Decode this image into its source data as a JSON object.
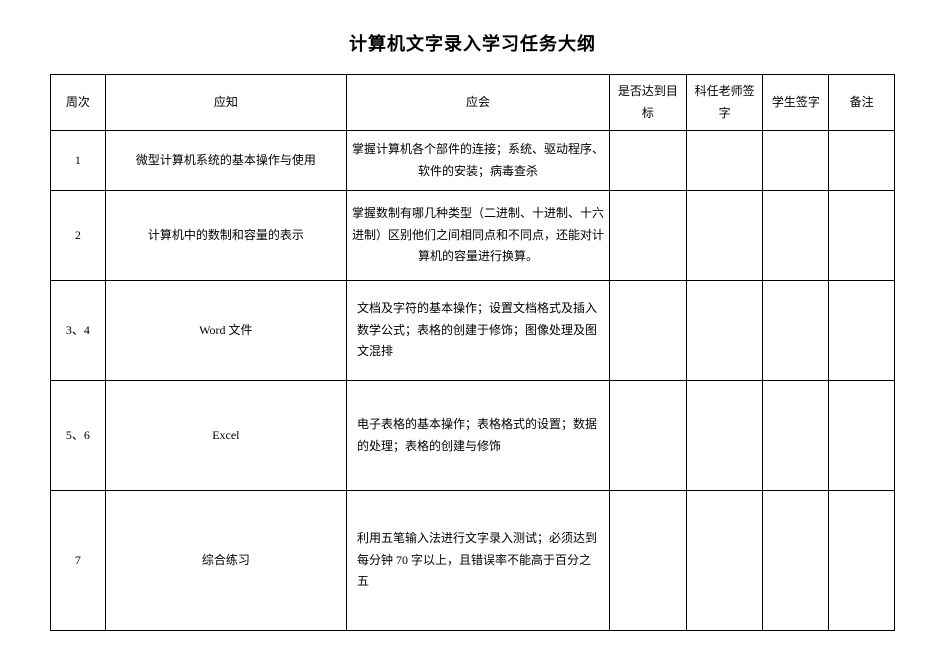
{
  "title": "计算机文字录入学习任务大纲",
  "columns": {
    "week": "周次",
    "yingzhi": "应知",
    "yinghui": "应会",
    "target": "是否达到目标",
    "teacher": "科任老师签字",
    "student": "学生签字",
    "notes": "备注"
  },
  "rows": [
    {
      "week": "1",
      "yz": "微型计算机系统的基本操作与使用",
      "yh": "掌握计算机各个部件的连接；系统、驱动程序、软件的安装；病毒查杀",
      "yh_class": "yh-center"
    },
    {
      "week": "2",
      "yz": "计算机中的数制和容量的表示",
      "yh": "掌握数制有哪几种类型（二进制、十进制、十六进制）区别他们之间相同点和不同点，还能对计算机的容量进行换算。",
      "yh_class": "yh-center"
    },
    {
      "week": "3、4",
      "yz": "Word 文件",
      "yh": "文档及字符的基本操作；设置文档格式及插入数学公式；表格的创建于修饰；图像处理及图文混排",
      "yh_class": "yh-cell"
    },
    {
      "week": "5、6",
      "yz": "Excel",
      "yh": "电子表格的基本操作；表格格式的设置；数据的处理；表格的创建与修饰",
      "yh_class": "yh-cell"
    },
    {
      "week": "7",
      "yz": "综合练习",
      "yh": "利用五笔输入法进行文字录入测试；必须达到每分钟 70 字以上，且错误率不能高于百分之五",
      "yh_class": "yh-cell"
    }
  ]
}
